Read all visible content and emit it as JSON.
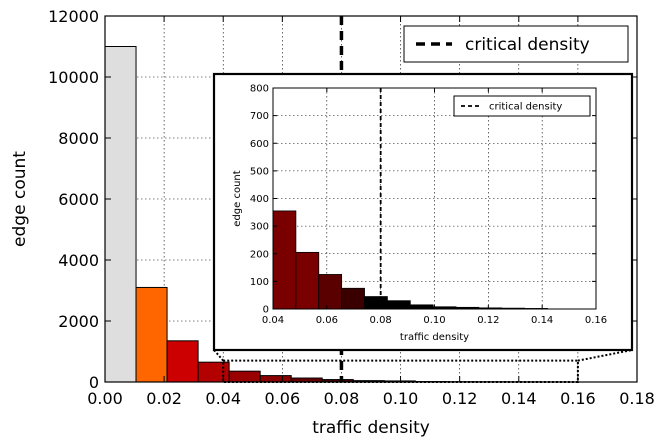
{
  "chart_data": [
    {
      "id": "main",
      "type": "bar",
      "histogram": true,
      "xlabel": "traffic density",
      "ylabel": "edge count",
      "xlim": [
        0,
        0.18
      ],
      "ylim": [
        0,
        12000
      ],
      "xticks": [
        0.0,
        0.02,
        0.04,
        0.06,
        0.08,
        0.1,
        0.12,
        0.14,
        0.16,
        0.18
      ],
      "xtick_labels": [
        "0.00",
        "0.02",
        "0.04",
        "0.06",
        "0.08",
        "0.10",
        "0.12",
        "0.14",
        "0.16",
        "0.18"
      ],
      "yticks": [
        0,
        2000,
        4000,
        6000,
        8000,
        10000,
        12000
      ],
      "ytick_labels": [
        "0",
        "2000",
        "4000",
        "6000",
        "8000",
        "10000",
        "12000"
      ],
      "grid": true,
      "bin_width": 0.0105,
      "bins": [
        {
          "x0": 0.0,
          "value": 11000,
          "color": "#dedede"
        },
        {
          "x0": 0.0105,
          "value": 3100,
          "color": "#ff6600"
        },
        {
          "x0": 0.021,
          "value": 1350,
          "color": "#cc0000"
        },
        {
          "x0": 0.0315,
          "value": 650,
          "color": "#b30000"
        },
        {
          "x0": 0.042,
          "value": 355,
          "color": "#990000"
        },
        {
          "x0": 0.0525,
          "value": 210,
          "color": "#880000"
        },
        {
          "x0": 0.063,
          "value": 130,
          "color": "#660000"
        },
        {
          "x0": 0.0735,
          "value": 80,
          "color": "#440000"
        },
        {
          "x0": 0.084,
          "value": 45,
          "color": "#000000"
        },
        {
          "x0": 0.0945,
          "value": 35,
          "color": "#000000"
        },
        {
          "x0": 0.105,
          "value": 15,
          "color": "#000000"
        },
        {
          "x0": 0.1155,
          "value": 10,
          "color": "#000000"
        },
        {
          "x0": 0.126,
          "value": 8,
          "color": "#000000"
        },
        {
          "x0": 0.1365,
          "value": 5,
          "color": "#000000"
        },
        {
          "x0": 0.147,
          "value": 3,
          "color": "#000000"
        }
      ],
      "critical_density": 0.08,
      "legend": {
        "label": "critical density",
        "placement": "top-right"
      },
      "zoom_region": {
        "x": [
          0.04,
          0.16
        ],
        "y": [
          0,
          700
        ]
      }
    },
    {
      "id": "inset",
      "type": "bar",
      "histogram": true,
      "xlabel": "traffic density",
      "ylabel": "edge count",
      "xlim": [
        0.04,
        0.16
      ],
      "ylim": [
        0,
        800
      ],
      "xticks": [
        0.04,
        0.06,
        0.08,
        0.1,
        0.12,
        0.14,
        0.16
      ],
      "xtick_labels": [
        "0.04",
        "0.06",
        "0.08",
        "0.10",
        "0.12",
        "0.14",
        "0.16"
      ],
      "yticks": [
        0,
        100,
        200,
        300,
        400,
        500,
        600,
        700,
        800
      ],
      "ytick_labels": [
        "0",
        "100",
        "200",
        "300",
        "400",
        "500",
        "600",
        "700",
        "800"
      ],
      "grid": true,
      "bin_width": 0.0085,
      "bins": [
        {
          "x0": 0.04,
          "value": 355,
          "color": "#7a0000"
        },
        {
          "x0": 0.0485,
          "value": 205,
          "color": "#7a0000"
        },
        {
          "x0": 0.057,
          "value": 125,
          "color": "#5a0000"
        },
        {
          "x0": 0.0655,
          "value": 75,
          "color": "#3a0000"
        },
        {
          "x0": 0.074,
          "value": 45,
          "color": "#000000"
        },
        {
          "x0": 0.0825,
          "value": 30,
          "color": "#000000"
        },
        {
          "x0": 0.091,
          "value": 15,
          "color": "#000000"
        },
        {
          "x0": 0.0995,
          "value": 8,
          "color": "#000000"
        },
        {
          "x0": 0.108,
          "value": 6,
          "color": "#000000"
        },
        {
          "x0": 0.1165,
          "value": 4,
          "color": "#000000"
        },
        {
          "x0": 0.125,
          "value": 3,
          "color": "#000000"
        },
        {
          "x0": 0.1335,
          "value": 2,
          "color": "#000000"
        }
      ],
      "critical_density": 0.08,
      "legend": {
        "label": "critical density",
        "placement": "top-right"
      }
    }
  ]
}
